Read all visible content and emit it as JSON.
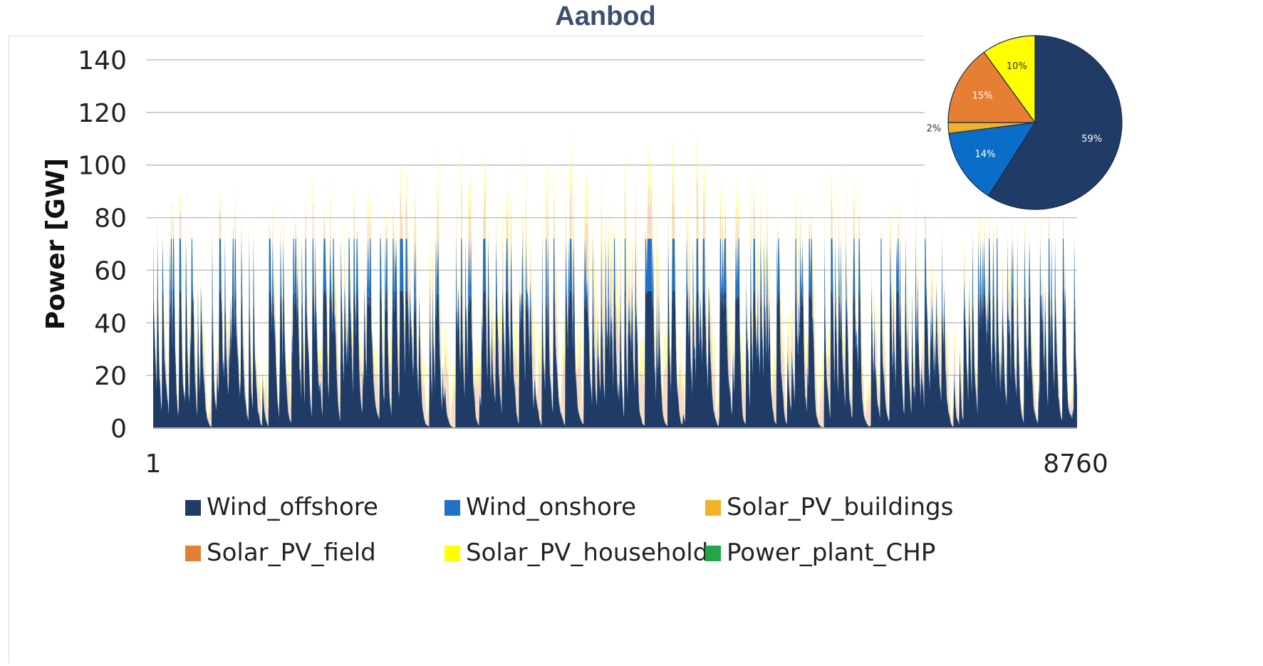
{
  "chart_data": [
    {
      "type": "area",
      "title": "Aanbod",
      "ylabel": "Power [GW]",
      "xlabel": "",
      "ylim": [
        0,
        140
      ],
      "yticks": [
        "0",
        "20",
        "40",
        "60",
        "80",
        "100",
        "120",
        "140"
      ],
      "xlim": [
        1,
        8760
      ],
      "xticks": [
        "1",
        "8760"
      ],
      "grid": "horizontal",
      "stacked": true,
      "series": [
        {
          "name": "Wind_offshore",
          "color": "#1f3b66",
          "capacity": 52
        },
        {
          "name": "Wind_onshore",
          "color": "#1f72c4",
          "capacity": 20
        },
        {
          "name": "Solar_PV_buildings",
          "color": "#f2b227",
          "peak": 3
        },
        {
          "name": "Solar_PV_field",
          "color": "#e67e33",
          "peak": 25
        },
        {
          "name": "Solar_PV_households",
          "color": "#ffff00",
          "peak": 18
        },
        {
          "name": "Power_plant_CHP",
          "color": "#22a64a",
          "peak": 0
        }
      ],
      "legend": "bottom"
    },
    {
      "type": "pie",
      "position": "top-right inset",
      "slices": [
        {
          "name": "Wind_offshore",
          "value": 59,
          "label": "59%",
          "color": "#1f3b66"
        },
        {
          "name": "Wind_onshore",
          "value": 14,
          "label": "14%",
          "color": "#0a6ec8"
        },
        {
          "name": "Solar_PV_buildings",
          "value": 2,
          "label": "2%",
          "color": "#f2b227"
        },
        {
          "name": "Solar_PV_field",
          "value": 15,
          "label": "15%",
          "color": "#e67e33"
        },
        {
          "name": "Solar_PV_households",
          "value": 10,
          "label": "10%",
          "color": "#ffff00"
        }
      ]
    }
  ]
}
